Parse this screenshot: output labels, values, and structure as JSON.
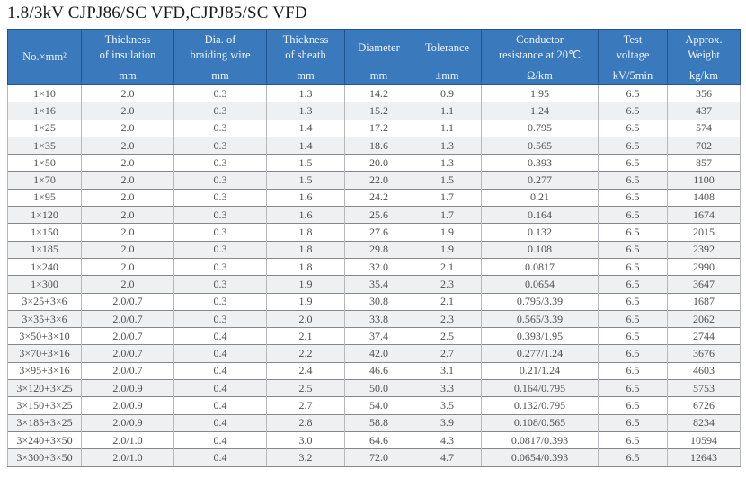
{
  "page": {
    "title": "1.8/3kV CJPJ86/SC VFD,CJPJ85/SC VFD"
  },
  "colors": {
    "header_bg": "#3a79bc",
    "header_border": "#1d5693",
    "header_text": "#eef4fb",
    "row_alt_bg": "#eef0f2",
    "grid_horizontal": "#85888c",
    "grid_vertical": "#b4b7bb",
    "body_text": "#4f4f4f",
    "title_text": "#1b1b1b"
  },
  "table": {
    "columns": [
      {
        "label": "No.×mm²",
        "unit": ""
      },
      {
        "label": "Thickness\nof insulation",
        "unit": "mm"
      },
      {
        "label": "Dia. of\nbraiding wire",
        "unit": "mm"
      },
      {
        "label": "Thickness\nof sheath",
        "unit": "mm"
      },
      {
        "label": "Diameter",
        "unit": "mm"
      },
      {
        "label": "Tolerance",
        "unit": "±mm"
      },
      {
        "label": "Conductor\nresistance at 20℃",
        "unit": "Ω/km"
      },
      {
        "label": "Test\nvoltage",
        "unit": "kV/5min"
      },
      {
        "label": "Approx.\nWeight",
        "unit": "kg/km"
      }
    ],
    "rows": [
      [
        "1×10",
        "2.0",
        "0.3",
        "1.3",
        "14.2",
        "0.9",
        "1.95",
        "6.5",
        "356"
      ],
      [
        "1×16",
        "2.0",
        "0.3",
        "1.3",
        "15.2",
        "1.1",
        "1.24",
        "6.5",
        "437"
      ],
      [
        "1×25",
        "2.0",
        "0.3",
        "1.4",
        "17.2",
        "1.1",
        "0.795",
        "6.5",
        "574"
      ],
      [
        "1×35",
        "2.0",
        "0.3",
        "1.4",
        "18.6",
        "1.3",
        "0.565",
        "6.5",
        "702"
      ],
      [
        "1×50",
        "2.0",
        "0.3",
        "1.5",
        "20.0",
        "1.3",
        "0.393",
        "6.5",
        "857"
      ],
      [
        "1×70",
        "2.0",
        "0.3",
        "1.5",
        "22.0",
        "1.5",
        "0.277",
        "6.5",
        "1100"
      ],
      [
        "1×95",
        "2.0",
        "0.3",
        "1.6",
        "24.2",
        "1.7",
        "0.21",
        "6.5",
        "1408"
      ],
      [
        "1×120",
        "2.0",
        "0.3",
        "1.6",
        "25.6",
        "1.7",
        "0.164",
        "6.5",
        "1674"
      ],
      [
        "1×150",
        "2.0",
        "0.3",
        "1.8",
        "27.6",
        "1.9",
        "0.132",
        "6.5",
        "2015"
      ],
      [
        "1×185",
        "2.0",
        "0.3",
        "1.8",
        "29.8",
        "1.9",
        "0.108",
        "6.5",
        "2392"
      ],
      [
        "1×240",
        "2.0",
        "0.3",
        "1.8",
        "32.0",
        "2.1",
        "0.0817",
        "6.5",
        "2990"
      ],
      [
        "1×300",
        "2.0",
        "0.3",
        "1.9",
        "35.4",
        "2.3",
        "0.0654",
        "6.5",
        "3647"
      ],
      [
        "3×25+3×6",
        "2.0/0.7",
        "0.3",
        "1.9",
        "30.8",
        "2.1",
        "0.795/3.39",
        "6.5",
        "1687"
      ],
      [
        "3×35+3×6",
        "2.0/0.7",
        "0.3",
        "2.0",
        "33.8",
        "2.3",
        "0.565/3.39",
        "6.5",
        "2062"
      ],
      [
        "3×50+3×10",
        "2.0/0.7",
        "0.4",
        "2.1",
        "37.4",
        "2.5",
        "0.393/1.95",
        "6.5",
        "2744"
      ],
      [
        "3×70+3×16",
        "2.0/0.7",
        "0.4",
        "2.2",
        "42.0",
        "2.7",
        "0.277/1.24",
        "6.5",
        "3676"
      ],
      [
        "3×95+3×16",
        "2.0/0.7",
        "0.4",
        "2.4",
        "46.6",
        "3.1",
        "0.21/1.24",
        "6.5",
        "4603"
      ],
      [
        "3×120+3×25",
        "2.0/0.9",
        "0.4",
        "2.5",
        "50.0",
        "3.3",
        "0.164/0.795",
        "6.5",
        "5753"
      ],
      [
        "3×150+3×25",
        "2.0/0.9",
        "0.4",
        "2.7",
        "54.0",
        "3.5",
        "0.132/0.795",
        "6.5",
        "6726"
      ],
      [
        "3×185+3×25",
        "2.0/0.9",
        "0.4",
        "2.8",
        "58.8",
        "3.9",
        "0.108/0.565",
        "6.5",
        "8234"
      ],
      [
        "3×240+3×50",
        "2.0/1.0",
        "0.4",
        "3.0",
        "64.6",
        "4.3",
        "0.0817/0.393",
        "6.5",
        "10594"
      ],
      [
        "3×300+3×50",
        "2.0/1.0",
        "0.4",
        "3.2",
        "72.0",
        "4.7",
        "0.0654/0.393",
        "6.5",
        "12643"
      ]
    ]
  }
}
